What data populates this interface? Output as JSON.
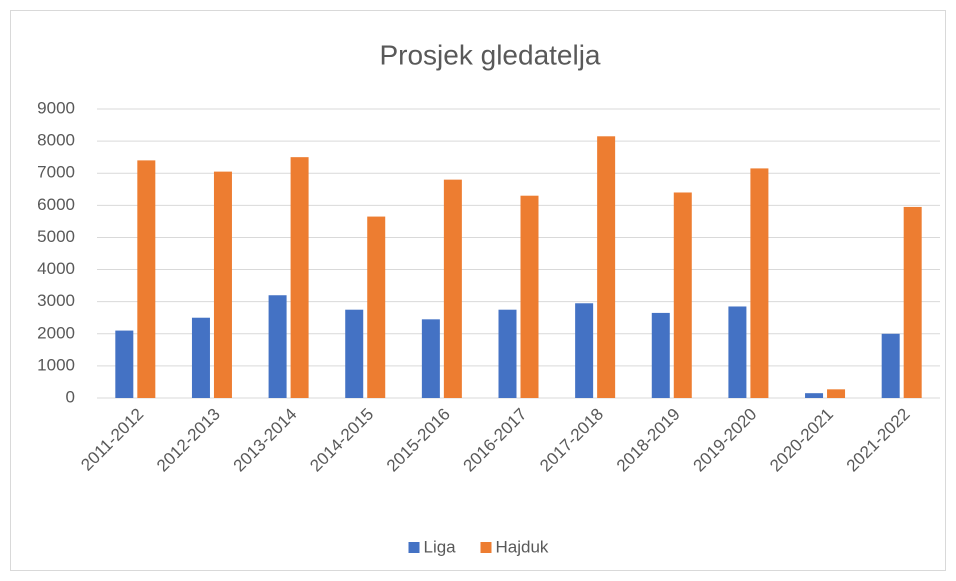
{
  "chart_data": {
    "type": "bar",
    "title": "Prosjek gledatelja",
    "categories": [
      "2011-2012",
      "2012-2013",
      "2013-2014",
      "2014-2015",
      "2015-2016",
      "2016-2017",
      "2017-2018",
      "2018-2019",
      "2019-2020",
      "2020-2021",
      "2021-2022"
    ],
    "series": [
      {
        "name": "Liga",
        "color": "#4472c4",
        "values": [
          2100,
          2500,
          3200,
          2750,
          2450,
          2750,
          2950,
          2650,
          2850,
          150,
          2000
        ]
      },
      {
        "name": "Hajduk",
        "color": "#ed7d31",
        "values": [
          7400,
          7050,
          7500,
          5650,
          6800,
          6300,
          8150,
          6400,
          7150,
          270,
          5950
        ]
      }
    ],
    "ylim": [
      0,
      9000
    ],
    "yticks": [
      0,
      1000,
      2000,
      3000,
      4000,
      5000,
      6000,
      7000,
      8000,
      9000
    ],
    "grid": true,
    "legend": "bottom"
  }
}
